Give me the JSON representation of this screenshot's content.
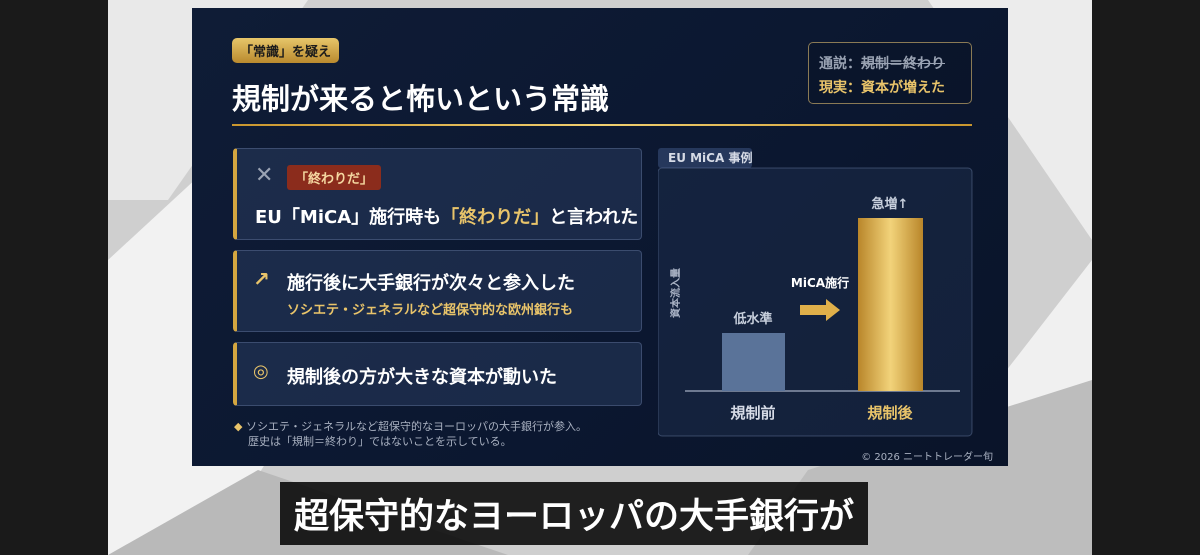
{
  "header": {
    "tag": "「常識」を疑え",
    "title": "規制が来ると怖いという常識"
  },
  "summary": {
    "myth_label": "通説：",
    "myth_text": "規制＝終わり",
    "reality": "現実：資本が増えた"
  },
  "points": [
    {
      "tag": "「終わりだ」",
      "text_before": "EU「MiCA」施行時も",
      "text_highlight": "「終わりだ」",
      "text_after": "と言われた"
    },
    {
      "text": "施行後に大手銀行が次々と参入した",
      "subtext": "ソシエテ・ジェネラルなど超保守的な欧州銀行も"
    },
    {
      "text": "規制後の方が大きな資本が動いた"
    }
  ],
  "note": [
    "ソシエテ・ジェネラルなど超保守的なヨーロッパの大手銀行が参入。",
    "歴史は「規制＝終わり」ではないことを示している。"
  ],
  "case": {
    "label": "EU MiCA 事例",
    "y_label": "資本流入量",
    "event": "MiCA施行",
    "bars": [
      {
        "label": "規制前",
        "note": "低水準"
      },
      {
        "label": "規制後",
        "note": "急増↑"
      }
    ]
  },
  "copyright": "© 2026 ニートトレーダー旬",
  "subtitle": "超保守的なヨーロッパの大手銀行が"
}
